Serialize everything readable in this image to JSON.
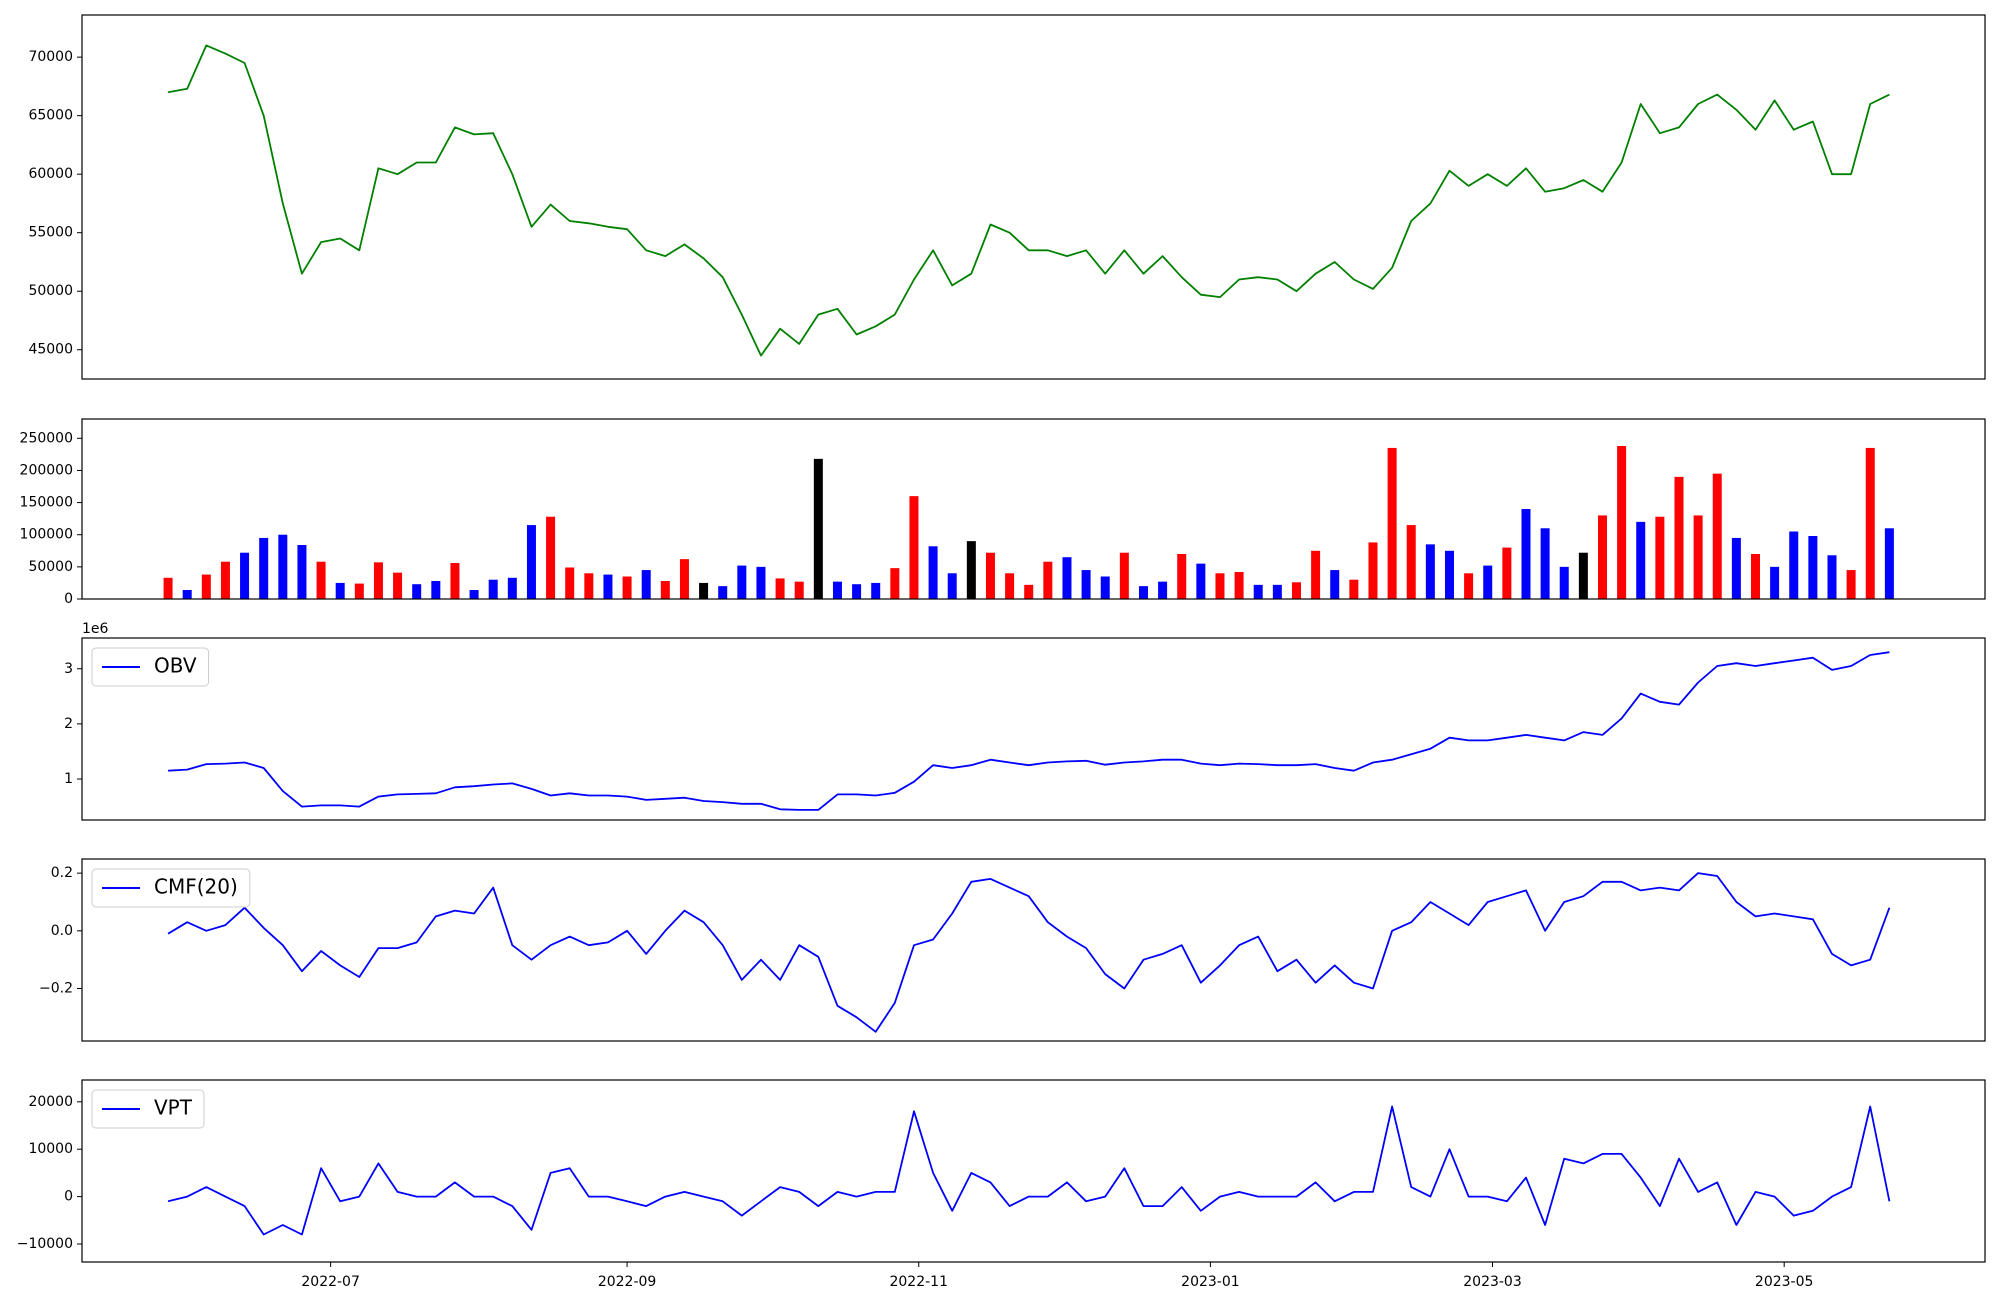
{
  "chart_data": [
    {
      "type": "line",
      "color": "#008000",
      "x": [
        19140,
        19144,
        19148,
        19152,
        19156,
        19160,
        19164,
        19168,
        19172,
        19176,
        19180,
        19184,
        19188,
        19192,
        19196,
        19200,
        19204,
        19208,
        19212,
        19216,
        19220,
        19224,
        19228,
        19232,
        19236,
        19240,
        19244,
        19248,
        19252,
        19256,
        19260,
        19264,
        19268,
        19272,
        19276,
        19280,
        19284,
        19288,
        19292,
        19296,
        19300,
        19304,
        19308,
        19312,
        19316,
        19320,
        19324,
        19328,
        19332,
        19336,
        19340,
        19344,
        19348,
        19352,
        19356,
        19360,
        19364,
        19368,
        19372,
        19376,
        19380,
        19384,
        19388,
        19392,
        19396,
        19400,
        19404,
        19408,
        19412,
        19416,
        19420,
        19424,
        19428,
        19432,
        19436,
        19440,
        19444,
        19448,
        19452,
        19456,
        19460,
        19464,
        19468,
        19472,
        19476,
        19480,
        19484,
        19488,
        19492,
        19496,
        19500
      ],
      "values": [
        67000,
        67300,
        71000,
        70300,
        69500,
        65000,
        57500,
        51500,
        54200,
        54500,
        53500,
        60500,
        60000,
        61000,
        61000,
        64000,
        63400,
        63500,
        60000,
        55500,
        57400,
        56000,
        55800,
        55500,
        55300,
        53500,
        53000,
        54000,
        52800,
        51200,
        48000,
        44500,
        46800,
        45500,
        48000,
        48500,
        46300,
        47000,
        48000,
        51000,
        53500,
        50500,
        51500,
        55700,
        55000,
        53500,
        53500,
        53000,
        53500,
        51500,
        53500,
        51500,
        53000,
        51200,
        49700,
        49500,
        51000,
        51200,
        51000,
        50000,
        51500,
        52500,
        51000,
        50200,
        52000,
        56000,
        57500,
        60300,
        59000,
        60000,
        59000,
        60500,
        58500,
        58800,
        59500,
        58500,
        61000,
        66000,
        63500,
        64000,
        66000,
        66800,
        65500,
        63800,
        66300,
        63800,
        64500,
        60000,
        60000,
        66000,
        66800
      ],
      "xlim": [
        19122,
        19520
      ],
      "ylim": [
        42500,
        73600
      ],
      "yticks": [
        45000,
        50000,
        55000,
        60000,
        65000,
        70000
      ]
    },
    {
      "type": "bar",
      "x": [
        19140,
        19144,
        19148,
        19152,
        19156,
        19160,
        19164,
        19168,
        19172,
        19176,
        19180,
        19184,
        19188,
        19192,
        19196,
        19200,
        19204,
        19208,
        19212,
        19216,
        19220,
        19224,
        19228,
        19232,
        19236,
        19240,
        19244,
        19248,
        19252,
        19256,
        19260,
        19264,
        19268,
        19272,
        19276,
        19280,
        19284,
        19288,
        19292,
        19296,
        19300,
        19304,
        19308,
        19312,
        19316,
        19320,
        19324,
        19328,
        19332,
        19336,
        19340,
        19344,
        19348,
        19352,
        19356,
        19360,
        19364,
        19368,
        19372,
        19376,
        19380,
        19384,
        19388,
        19392,
        19396,
        19400,
        19404,
        19408,
        19412,
        19416,
        19420,
        19424,
        19428,
        19432,
        19436,
        19440,
        19444,
        19448,
        19452,
        19456,
        19460,
        19464,
        19468,
        19472,
        19476,
        19480,
        19484,
        19488,
        19492,
        19496,
        19500
      ],
      "values": [
        33000,
        14000,
        38000,
        58000,
        72000,
        95000,
        100000,
        84000,
        58000,
        25000,
        24000,
        57000,
        41000,
        23000,
        28000,
        56000,
        14000,
        30000,
        33000,
        115000,
        128000,
        49000,
        40000,
        38000,
        35000,
        45000,
        28000,
        62000,
        25000,
        20000,
        52000,
        50000,
        32000,
        27000,
        218000,
        27000,
        23000,
        25000,
        48000,
        160000,
        82000,
        40000,
        90000,
        72000,
        40000,
        22000,
        58000,
        65000,
        45000,
        35000,
        72000,
        20000,
        27000,
        70000,
        55000,
        40000,
        42000,
        22000,
        22000,
        26000,
        75000,
        45000,
        30000,
        88000,
        235000,
        115000,
        85000,
        75000,
        40000,
        52000,
        80000,
        140000,
        110000,
        50000,
        72000,
        130000,
        238000,
        120000,
        128000,
        190000,
        130000,
        195000,
        95000,
        70000,
        50000,
        105000,
        98000,
        68000,
        45000,
        235000,
        110000
      ],
      "colors": [
        "red",
        "blue",
        "red",
        "red",
        "blue",
        "blue",
        "blue",
        "blue",
        "red",
        "blue",
        "red",
        "red",
        "red",
        "blue",
        "blue",
        "red",
        "blue",
        "blue",
        "blue",
        "blue",
        "red",
        "red",
        "red",
        "blue",
        "red",
        "blue",
        "red",
        "red",
        "black",
        "blue",
        "blue",
        "blue",
        "red",
        "red",
        "black",
        "blue",
        "blue",
        "blue",
        "red",
        "red",
        "blue",
        "blue",
        "black",
        "red",
        "red",
        "red",
        "red",
        "blue",
        "blue",
        "blue",
        "red",
        "blue",
        "blue",
        "red",
        "blue",
        "red",
        "red",
        "blue",
        "blue",
        "red",
        "red",
        "blue",
        "red",
        "red",
        "red",
        "red",
        "blue",
        "blue",
        "red",
        "blue",
        "red",
        "blue",
        "blue",
        "blue",
        "black",
        "red",
        "red",
        "blue",
        "red",
        "red",
        "red",
        "red",
        "blue",
        "red",
        "blue",
        "blue",
        "blue",
        "blue",
        "red",
        "red",
        "blue"
      ],
      "xlim": [
        19122,
        19520
      ],
      "ylim": [
        0,
        280000
      ],
      "yticks": [
        0,
        50000,
        100000,
        150000,
        200000,
        250000
      ]
    },
    {
      "type": "line",
      "legend": "upper left",
      "offset_label": "1e6",
      "x": [
        19140,
        19144,
        19148,
        19152,
        19156,
        19160,
        19164,
        19168,
        19172,
        19176,
        19180,
        19184,
        19188,
        19192,
        19196,
        19200,
        19204,
        19208,
        19212,
        19216,
        19220,
        19224,
        19228,
        19232,
        19236,
        19240,
        19244,
        19248,
        19252,
        19256,
        19260,
        19264,
        19268,
        19272,
        19276,
        19280,
        19284,
        19288,
        19292,
        19296,
        19300,
        19304,
        19308,
        19312,
        19316,
        19320,
        19324,
        19328,
        19332,
        19336,
        19340,
        19344,
        19348,
        19352,
        19356,
        19360,
        19364,
        19368,
        19372,
        19376,
        19380,
        19384,
        19388,
        19392,
        19396,
        19400,
        19404,
        19408,
        19412,
        19416,
        19420,
        19424,
        19428,
        19432,
        19436,
        19440,
        19444,
        19448,
        19452,
        19456,
        19460,
        19464,
        19468,
        19472,
        19476,
        19480,
        19484,
        19488,
        19492,
        19496,
        19500
      ],
      "series": [
        {
          "name": "OBV",
          "color": "#0000ff",
          "values": [
            1150000,
            1170000,
            1270000,
            1280000,
            1300000,
            1200000,
            780000,
            500000,
            520000,
            520000,
            500000,
            680000,
            720000,
            730000,
            740000,
            850000,
            870000,
            900000,
            920000,
            820000,
            700000,
            740000,
            700000,
            700000,
            680000,
            620000,
            640000,
            660000,
            600000,
            580000,
            550000,
            550000,
            450000,
            440000,
            440000,
            720000,
            720000,
            700000,
            750000,
            950000,
            1250000,
            1200000,
            1250000,
            1350000,
            1300000,
            1250000,
            1300000,
            1320000,
            1330000,
            1260000,
            1300000,
            1320000,
            1350000,
            1350000,
            1280000,
            1250000,
            1280000,
            1270000,
            1250000,
            1250000,
            1270000,
            1200000,
            1150000,
            1300000,
            1350000,
            1450000,
            1550000,
            1750000,
            1700000,
            1700000,
            1750000,
            1800000,
            1750000,
            1700000,
            1850000,
            1800000,
            2100000,
            2550000,
            2400000,
            2350000,
            2750000,
            3050000,
            3100000,
            3050000,
            3100000,
            3150000,
            3200000,
            2980000,
            3050000,
            3250000,
            3300000
          ]
        }
      ],
      "xlim": [
        19122,
        19520
      ],
      "ylim": [
        256000,
        3558000
      ],
      "yticks": [
        {
          "value": 1000000,
          "label": "1"
        },
        {
          "value": 2000000,
          "label": "2"
        },
        {
          "value": 3000000,
          "label": "3"
        }
      ]
    },
    {
      "type": "line",
      "legend": "upper left",
      "x": [
        19140,
        19144,
        19148,
        19152,
        19156,
        19160,
        19164,
        19168,
        19172,
        19176,
        19180,
        19184,
        19188,
        19192,
        19196,
        19200,
        19204,
        19208,
        19212,
        19216,
        19220,
        19224,
        19228,
        19232,
        19236,
        19240,
        19244,
        19248,
        19252,
        19256,
        19260,
        19264,
        19268,
        19272,
        19276,
        19280,
        19284,
        19288,
        19292,
        19296,
        19300,
        19304,
        19308,
        19312,
        19316,
        19320,
        19324,
        19328,
        19332,
        19336,
        19340,
        19344,
        19348,
        19352,
        19356,
        19360,
        19364,
        19368,
        19372,
        19376,
        19380,
        19384,
        19388,
        19392,
        19396,
        19400,
        19404,
        19408,
        19412,
        19416,
        19420,
        19424,
        19428,
        19432,
        19436,
        19440,
        19444,
        19448,
        19452,
        19456,
        19460,
        19464,
        19468,
        19472,
        19476,
        19480,
        19484,
        19488,
        19492,
        19496,
        19500
      ],
      "series": [
        {
          "name": "CMF(20)",
          "color": "#0000ff",
          "values": [
            -0.01,
            0.03,
            0.0,
            0.02,
            0.08,
            0.01,
            -0.05,
            -0.14,
            -0.07,
            -0.12,
            -0.16,
            -0.06,
            -0.06,
            -0.04,
            0.05,
            0.07,
            0.06,
            0.15,
            -0.05,
            -0.1,
            -0.05,
            -0.02,
            -0.05,
            -0.04,
            0.0,
            -0.08,
            0.0,
            0.07,
            0.03,
            -0.05,
            -0.17,
            -0.1,
            -0.17,
            -0.05,
            -0.09,
            -0.26,
            -0.3,
            -0.35,
            -0.25,
            -0.05,
            -0.03,
            0.06,
            0.17,
            0.18,
            0.15,
            0.12,
            0.03,
            -0.02,
            -0.06,
            -0.15,
            -0.2,
            -0.1,
            -0.08,
            -0.05,
            -0.18,
            -0.12,
            -0.05,
            -0.02,
            -0.14,
            -0.1,
            -0.18,
            -0.12,
            -0.18,
            -0.2,
            0.0,
            0.03,
            0.1,
            0.06,
            0.02,
            0.1,
            0.12,
            0.14,
            0.0,
            0.1,
            0.12,
            0.17,
            0.17,
            0.14,
            0.15,
            0.14,
            0.2,
            0.19,
            0.1,
            0.05,
            0.06,
            0.05,
            0.04,
            -0.08,
            -0.12,
            -0.1,
            0.08
          ]
        }
      ],
      "xlim": [
        19122,
        19520
      ],
      "ylim": [
        -0.382,
        0.249
      ],
      "yticks": [
        {
          "value": -0.2,
          "label": "−0.2"
        },
        {
          "value": 0,
          "label": "0.0"
        },
        0.2
      ]
    },
    {
      "type": "line",
      "legend": "upper left",
      "x": [
        19140,
        19144,
        19148,
        19152,
        19156,
        19160,
        19164,
        19168,
        19172,
        19176,
        19180,
        19184,
        19188,
        19192,
        19196,
        19200,
        19204,
        19208,
        19212,
        19216,
        19220,
        19224,
        19228,
        19232,
        19236,
        19240,
        19244,
        19248,
        19252,
        19256,
        19260,
        19264,
        19268,
        19272,
        19276,
        19280,
        19284,
        19288,
        19292,
        19296,
        19300,
        19304,
        19308,
        19312,
        19316,
        19320,
        19324,
        19328,
        19332,
        19336,
        19340,
        19344,
        19348,
        19352,
        19356,
        19360,
        19364,
        19368,
        19372,
        19376,
        19380,
        19384,
        19388,
        19392,
        19396,
        19400,
        19404,
        19408,
        19412,
        19416,
        19420,
        19424,
        19428,
        19432,
        19436,
        19440,
        19444,
        19448,
        19452,
        19456,
        19460,
        19464,
        19468,
        19472,
        19476,
        19480,
        19484,
        19488,
        19492,
        19496,
        19500
      ],
      "series": [
        {
          "name": "VPT",
          "color": "#0000ff",
          "values": [
            -1000,
            0,
            2000,
            0,
            -2000,
            -8000,
            -6000,
            -8000,
            6000,
            -1000,
            0,
            7000,
            1000,
            0,
            0,
            3000,
            0,
            0,
            -2000,
            -7000,
            5000,
            6000,
            0,
            0,
            -1000,
            -2000,
            0,
            1000,
            0,
            -1000,
            -4000,
            -1000,
            2000,
            1000,
            -2000,
            1000,
            0,
            1000,
            1000,
            18000,
            5000,
            -3000,
            5000,
            3000,
            -2000,
            0,
            0,
            3000,
            -1000,
            0,
            6000,
            -2000,
            -2000,
            2000,
            -3000,
            0,
            1000,
            0,
            0,
            0,
            3000,
            -1000,
            1000,
            1000,
            19000,
            2000,
            0,
            10000,
            0,
            0,
            -1000,
            4000,
            -6000,
            8000,
            7000,
            9000,
            9000,
            4000,
            -2000,
            8000,
            1000,
            3000,
            -6000,
            1000,
            0,
            -4000,
            -3000,
            0,
            2000,
            19000,
            -1000
          ]
        }
      ],
      "xlim": [
        19122,
        19520
      ],
      "ylim": [
        -13800,
        24600
      ],
      "yticks": [
        {
          "value": -10000,
          "label": "−10000"
        },
        0,
        10000,
        20000
      ],
      "xticks": [
        {
          "value": 19174,
          "label": "2022-07"
        },
        {
          "value": 19236,
          "label": "2022-09"
        },
        {
          "value": 19297,
          "label": "2022-11"
        },
        {
          "value": 19358,
          "label": "2023-01"
        },
        {
          "value": 19417,
          "label": "2023-03"
        },
        {
          "value": 19478,
          "label": "2023-05"
        }
      ]
    }
  ]
}
